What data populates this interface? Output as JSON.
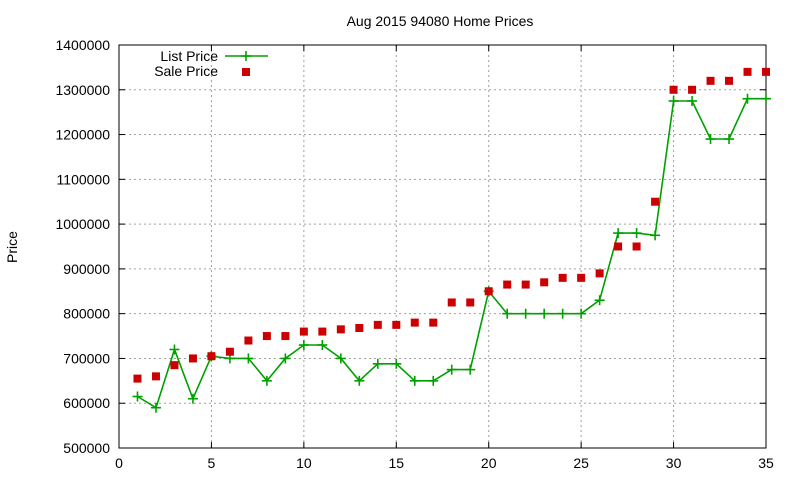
{
  "chart_data": {
    "type": "line",
    "title": "Aug 2015 94080 Home Prices",
    "xlabel": "",
    "ylabel": "Price",
    "xlim": [
      0,
      35
    ],
    "ylim": [
      500000,
      1400000
    ],
    "x_ticks": [
      "0",
      "5",
      "10",
      "15",
      "20",
      "25",
      "30",
      "35"
    ],
    "y_ticks": [
      "500000",
      "600000",
      "700000",
      "800000",
      "900000",
      "1000000",
      "1100000",
      "1200000",
      "1300000",
      "1400000"
    ],
    "grid": true,
    "legend_position": "top-left",
    "x": [
      1,
      2,
      3,
      4,
      5,
      6,
      7,
      8,
      9,
      10,
      11,
      12,
      13,
      14,
      15,
      16,
      17,
      18,
      19,
      20,
      21,
      22,
      23,
      24,
      25,
      26,
      27,
      28,
      29,
      30,
      31,
      32,
      33,
      34,
      35
    ],
    "series": [
      {
        "name": "List Price",
        "style": "lines+crosses",
        "color": "#00a000",
        "values": [
          615000,
          590000,
          720000,
          610000,
          705000,
          700000,
          700000,
          650000,
          700000,
          730000,
          730000,
          700000,
          650000,
          688000,
          688000,
          650000,
          650000,
          675000,
          675000,
          850000,
          800000,
          800000,
          800000,
          800000,
          800000,
          830000,
          980000,
          980000,
          975000,
          1275000,
          1275000,
          1190000,
          1190000,
          1280000,
          1280000
        ]
      },
      {
        "name": "Sale Price",
        "style": "squares",
        "color": "#cc0000",
        "values": [
          655000,
          660000,
          685000,
          700000,
          705000,
          715000,
          740000,
          750000,
          750000,
          760000,
          760000,
          765000,
          768000,
          775000,
          775000,
          780000,
          780000,
          825000,
          825000,
          850000,
          865000,
          865000,
          870000,
          880000,
          880000,
          890000,
          950000,
          950000,
          1050000,
          1300000,
          1300000,
          1320000,
          1320000,
          1340000,
          1340000
        ]
      }
    ]
  }
}
